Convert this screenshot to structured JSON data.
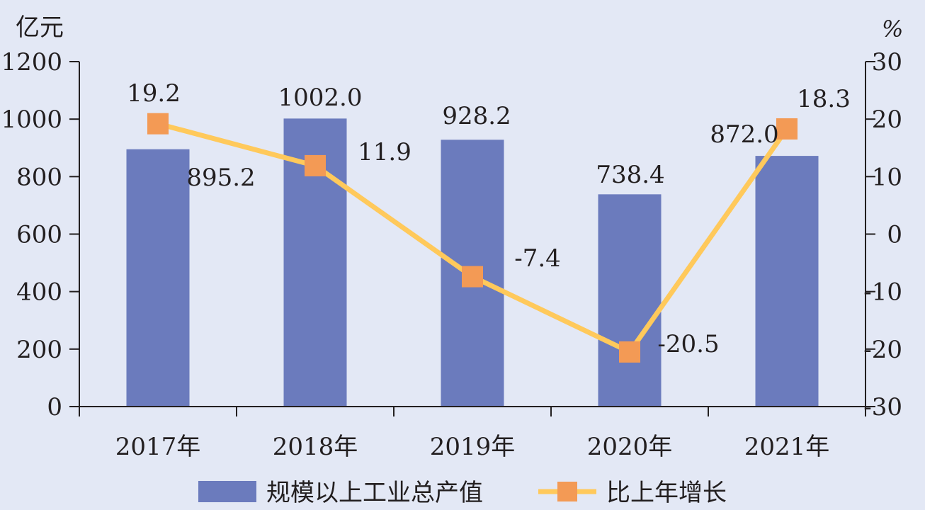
{
  "chart_data": {
    "type": "bar+line",
    "categories": [
      "2017年",
      "2018年",
      "2019年",
      "2020年",
      "2021年"
    ],
    "series": [
      {
        "name": "规模以上工业总产值",
        "type": "bar",
        "axis": "left",
        "values": [
          895.2,
          1002.0,
          928.2,
          738.4,
          872.0
        ],
        "labels": [
          "895.2",
          "1002.0",
          "928.2",
          "738.4",
          "872.0"
        ],
        "color": "#6b7bbd"
      },
      {
        "name": "比上年增长",
        "type": "line",
        "axis": "right",
        "values": [
          19.2,
          11.9,
          -7.4,
          -20.5,
          18.3
        ],
        "labels": [
          "19.2",
          "11.9",
          "-7.4",
          "-20.5",
          "18.3"
        ],
        "line_color": "#ffc95b",
        "marker_color": "#f39a55"
      }
    ],
    "y_left": {
      "unit": "亿元",
      "min": 0,
      "max": 1200,
      "ticks": [
        "0",
        "200",
        "400",
        "600",
        "800",
        "1000",
        "1200"
      ]
    },
    "y_right": {
      "unit": "%",
      "min": -30,
      "max": 30,
      "ticks": [
        "-30",
        "-20",
        "-10",
        "0",
        "10",
        "20",
        "30"
      ]
    },
    "grid": false,
    "legend_position": "bottom"
  }
}
